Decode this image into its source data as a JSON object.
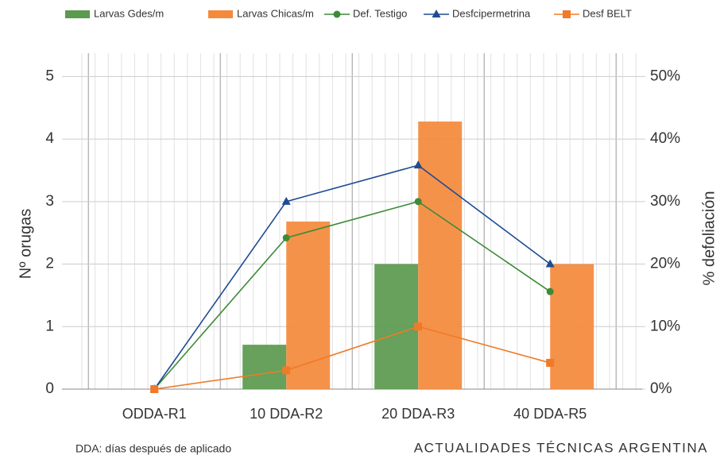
{
  "chart_data": {
    "type": "bar",
    "categories": [
      "ODDA-R1",
      "10 DDA-R2",
      "20 DDA-R3",
      "40 DDA-R5"
    ],
    "y_label": "Nº orugas",
    "y2_label": "% defoliación",
    "series": [
      {
        "name": "Larvas Gdes/m",
        "type": "bar",
        "color": "#5b9a4f",
        "values": [
          0,
          0.71,
          2.0,
          0
        ]
      },
      {
        "name": "Larvas Chicas/m",
        "type": "bar",
        "color": "#f48a3c",
        "values": [
          0,
          2.68,
          4.28,
          2.0
        ]
      },
      {
        "name": "Def. Testigo",
        "type": "line",
        "axis": "y2",
        "marker": "circle",
        "color": "#3d8b37",
        "values": [
          0,
          24.2,
          30,
          15.6
        ]
      },
      {
        "name": "Desfcipermetrina",
        "type": "line",
        "axis": "y2",
        "marker": "triangle",
        "color": "#1f4b94",
        "values": [
          0,
          30,
          35.8,
          20
        ]
      },
      {
        "name": "Desf BELT",
        "type": "line",
        "axis": "y2",
        "marker": "square",
        "color": "#f07a28",
        "values": [
          0,
          3.0,
          10,
          4.2
        ]
      }
    ],
    "ylim": [
      0,
      5.5
    ],
    "yticks": [
      0,
      1,
      2,
      3,
      4,
      5
    ],
    "y2lim": [
      0,
      55
    ],
    "y2ticks": [
      {
        "value": 0,
        "label": "0%"
      },
      {
        "value": 10,
        "label": "10%"
      },
      {
        "value": 20,
        "label": "20%"
      },
      {
        "value": 30,
        "label": "30%"
      },
      {
        "value": 40,
        "label": "40%"
      },
      {
        "value": 50,
        "label": "50%"
      }
    ],
    "grid": true,
    "note": "DDA: días después de aplicado",
    "source": "ACTUALIDADES TÉCNICAS ARGENTINA"
  }
}
